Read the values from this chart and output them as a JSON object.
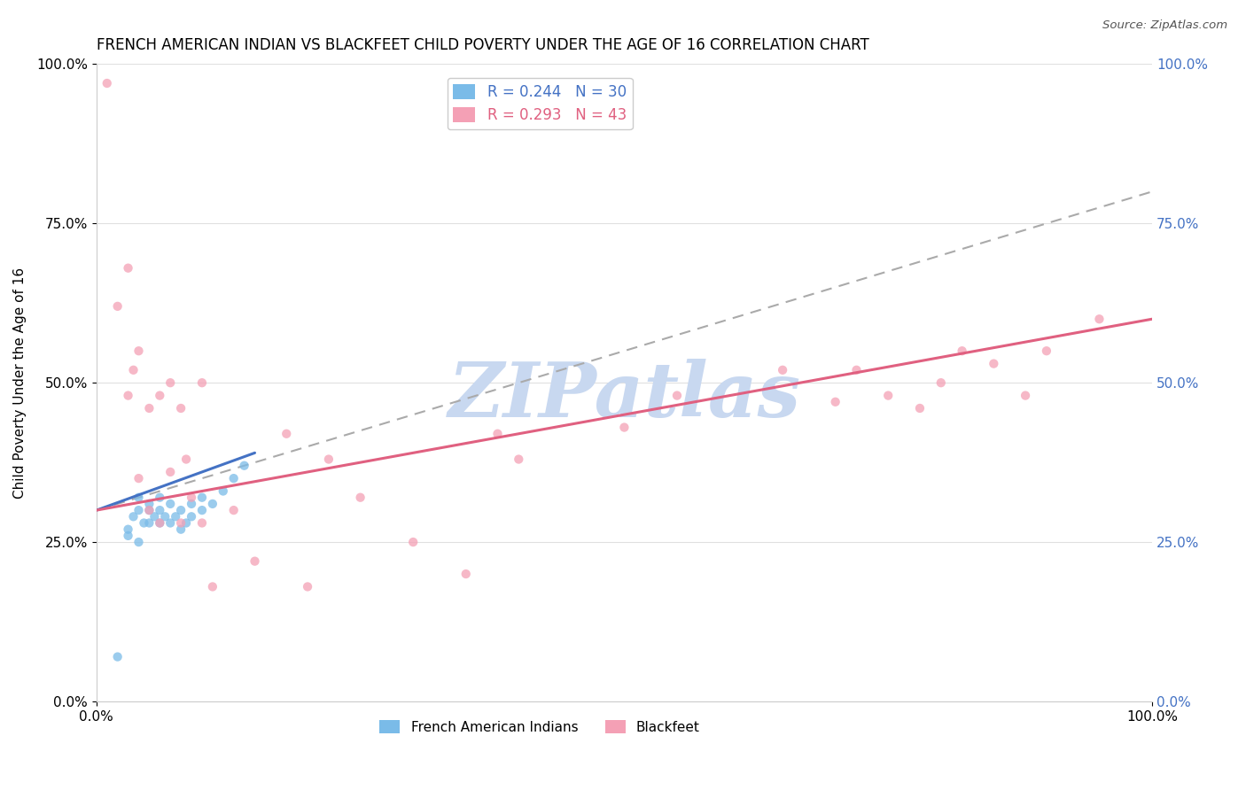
{
  "title": "FRENCH AMERICAN INDIAN VS BLACKFEET CHILD POVERTY UNDER THE AGE OF 16 CORRELATION CHART",
  "source": "Source: ZipAtlas.com",
  "ylabel": "Child Poverty Under the Age of 16",
  "xlim": [
    0,
    1
  ],
  "ylim": [
    0,
    1
  ],
  "xtick_positions": [
    0,
    1
  ],
  "xtick_labels": [
    "0.0%",
    "100.0%"
  ],
  "ytick_values": [
    0,
    0.25,
    0.5,
    0.75,
    1.0
  ],
  "ytick_labels": [
    "0.0%",
    "25.0%",
    "50.0%",
    "75.0%",
    "100.0%"
  ],
  "legend_r1": "R = 0.244",
  "legend_n1": "N = 30",
  "legend_r2": "R = 0.293",
  "legend_n2": "N = 43",
  "blue_color": "#7abbe8",
  "pink_color": "#f4a0b5",
  "blue_line_color": "#4472c4",
  "pink_line_color": "#e06080",
  "dash_line_color": "#aaaaaa",
  "right_tick_color": "#4472c4",
  "watermark": "ZIPatlas",
  "watermark_color": "#c8d8f0",
  "title_color": "#000000",
  "blue_scatter_x": [
    0.02,
    0.03,
    0.035,
    0.04,
    0.04,
    0.045,
    0.05,
    0.05,
    0.05,
    0.055,
    0.06,
    0.06,
    0.06,
    0.065,
    0.07,
    0.07,
    0.075,
    0.08,
    0.08,
    0.085,
    0.09,
    0.09,
    0.1,
    0.1,
    0.11,
    0.12,
    0.13,
    0.14,
    0.03,
    0.04
  ],
  "blue_scatter_y": [
    0.07,
    0.27,
    0.29,
    0.3,
    0.32,
    0.28,
    0.28,
    0.3,
    0.31,
    0.29,
    0.28,
    0.3,
    0.32,
    0.29,
    0.28,
    0.31,
    0.29,
    0.27,
    0.3,
    0.28,
    0.29,
    0.31,
    0.3,
    0.32,
    0.31,
    0.33,
    0.35,
    0.37,
    0.26,
    0.25
  ],
  "pink_scatter_x": [
    0.01,
    0.02,
    0.03,
    0.035,
    0.04,
    0.04,
    0.05,
    0.05,
    0.06,
    0.06,
    0.07,
    0.07,
    0.08,
    0.08,
    0.085,
    0.09,
    0.1,
    0.1,
    0.11,
    0.13,
    0.15,
    0.18,
    0.2,
    0.22,
    0.25,
    0.3,
    0.35,
    0.38,
    0.4,
    0.5,
    0.55,
    0.65,
    0.7,
    0.72,
    0.75,
    0.78,
    0.8,
    0.82,
    0.85,
    0.88,
    0.9,
    0.95,
    0.03
  ],
  "pink_scatter_y": [
    0.97,
    0.62,
    0.68,
    0.52,
    0.35,
    0.55,
    0.3,
    0.46,
    0.28,
    0.48,
    0.36,
    0.5,
    0.28,
    0.46,
    0.38,
    0.32,
    0.28,
    0.5,
    0.18,
    0.3,
    0.22,
    0.42,
    0.18,
    0.38,
    0.32,
    0.25,
    0.2,
    0.42,
    0.38,
    0.43,
    0.48,
    0.52,
    0.47,
    0.52,
    0.48,
    0.46,
    0.5,
    0.55,
    0.53,
    0.48,
    0.55,
    0.6,
    0.48
  ],
  "blue_line_x": [
    0,
    0.15
  ],
  "blue_line_y": [
    0.3,
    0.39
  ],
  "pink_line_x": [
    0,
    1.0
  ],
  "pink_line_y": [
    0.3,
    0.6
  ],
  "dash_line_x": [
    0,
    1.0
  ],
  "dash_line_y": [
    0.3,
    0.8
  ]
}
